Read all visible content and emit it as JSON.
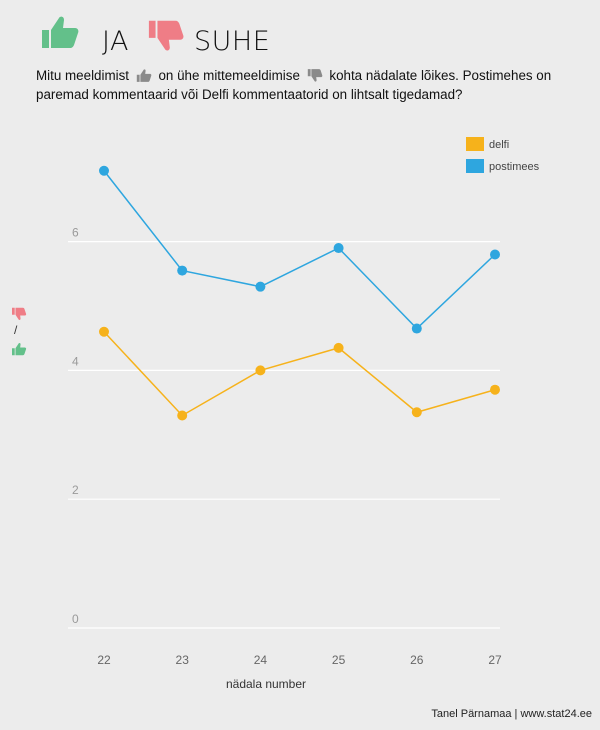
{
  "header": {
    "yes_label": "JA",
    "no_label": "SUHE",
    "thumb_up_color": "#63c08a",
    "thumb_down_color": "#ef7d86"
  },
  "subtitle": {
    "part1": "Mitu meeldimist",
    "part2": "on ühe mittemeeldimise",
    "part3": "kohta nädalate lõikes. Postimehes on paremad kommentaarid või Delfi kommentaatorid on lihtsalt tigedamad?"
  },
  "credit": "Tanel Pärnamaa | www.stat24.ee",
  "chart_data": {
    "type": "line",
    "xlabel": "nädala number",
    "ylabel": "/",
    "x": [
      22,
      23,
      24,
      25,
      26,
      27
    ],
    "ylim": [
      0,
      7.5
    ],
    "yticks": [
      0,
      2,
      4,
      6
    ],
    "legend_position": "top-right",
    "series": [
      {
        "name": "delfi",
        "color": "#f6b21b",
        "values": [
          4.6,
          3.3,
          4.0,
          4.35,
          3.35,
          3.7
        ]
      },
      {
        "name": "postimees",
        "color": "#2ea6df",
        "values": [
          7.1,
          5.55,
          5.3,
          5.9,
          4.65,
          5.8
        ]
      }
    ]
  }
}
